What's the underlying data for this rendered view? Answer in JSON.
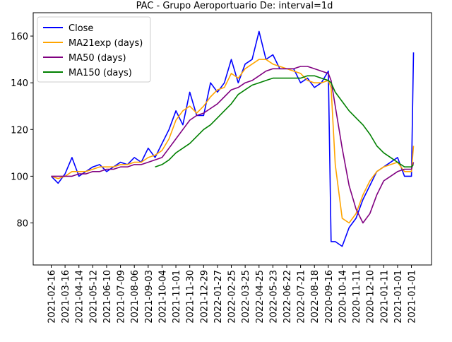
{
  "chart_data": {
    "type": "line",
    "title": "PAC - Grupo Aeroportuario De: interval=1d",
    "x": [
      0,
      10,
      20,
      30,
      40,
      50,
      60,
      70,
      80,
      90,
      100,
      110,
      120,
      130,
      140,
      150,
      160,
      170,
      180,
      190,
      200,
      210,
      220,
      230,
      240,
      250,
      260,
      270,
      280,
      290,
      300,
      310,
      320,
      330,
      340,
      350,
      360,
      370,
      380,
      390,
      400,
      404,
      410,
      420,
      430,
      440,
      450,
      460,
      470,
      480,
      490,
      500,
      510,
      520,
      523
    ],
    "series": [
      {
        "name": "Close",
        "color": "#0000ff",
        "values": [
          100,
          97,
          101,
          108,
          100,
          102,
          104,
          105,
          102,
          104,
          106,
          105,
          108,
          106,
          112,
          108,
          114,
          120,
          128,
          122,
          136,
          126,
          126,
          140,
          136,
          140,
          150,
          140,
          148,
          150,
          162,
          150,
          152,
          146,
          146,
          146,
          140,
          142,
          138,
          140,
          145,
          72,
          72,
          70,
          78,
          82,
          90,
          96,
          102,
          104,
          106,
          108,
          100,
          100,
          153
        ]
      },
      {
        "name": "MA21exp (days)",
        "color": "#ffa500",
        "values": [
          100,
          99,
          100,
          102,
          102,
          102,
          103,
          104,
          104,
          104,
          105,
          105,
          106,
          106,
          108,
          109,
          111,
          116,
          124,
          128,
          130,
          127,
          130,
          134,
          137,
          138,
          144,
          142,
          146,
          148,
          150,
          150,
          148,
          147,
          146,
          145,
          144,
          141,
          140,
          140,
          141,
          138,
          105,
          82,
          80,
          84,
          92,
          98,
          102,
          104,
          105,
          106,
          102,
          102,
          113
        ]
      },
      {
        "name": "MA50 (days)",
        "color": "#800080",
        "values": [
          100,
          100,
          100,
          100,
          101,
          101,
          102,
          102,
          103,
          103,
          104,
          104,
          105,
          105,
          106,
          107,
          108,
          112,
          116,
          120,
          124,
          126,
          127,
          129,
          131,
          134,
          137,
          138,
          140,
          141,
          143,
          145,
          146,
          146,
          146,
          146,
          147,
          147,
          146,
          145,
          144,
          141,
          130,
          112,
          96,
          86,
          80,
          84,
          92,
          98,
          100,
          102,
          103,
          103,
          106
        ]
      },
      {
        "name": "MA150 (days)",
        "color": "#008000",
        "values": [
          null,
          null,
          null,
          null,
          null,
          null,
          null,
          null,
          null,
          null,
          null,
          null,
          null,
          null,
          null,
          104,
          105,
          107,
          110,
          112,
          114,
          117,
          120,
          122,
          125,
          128,
          131,
          135,
          137,
          139,
          140,
          141,
          142,
          142,
          142,
          142,
          142,
          143,
          143,
          142,
          141,
          140,
          136,
          132,
          128,
          125,
          122,
          118,
          113,
          110,
          108,
          106,
          104,
          104,
          105
        ]
      }
    ],
    "xlim": [
      -26,
      549
    ],
    "xticks": [
      {
        "value": 0,
        "label": "2021-02-16"
      },
      {
        "value": 20,
        "label": "2021-03-16"
      },
      {
        "value": 40,
        "label": "2021-04-14"
      },
      {
        "value": 60,
        "label": "2021-05-12"
      },
      {
        "value": 80,
        "label": "2021-06-10"
      },
      {
        "value": 100,
        "label": "2021-07-09"
      },
      {
        "value": 120,
        "label": "2021-08-06"
      },
      {
        "value": 140,
        "label": "2021-09-03"
      },
      {
        "value": 160,
        "label": "2021-10-04"
      },
      {
        "value": 180,
        "label": "2021-11-01"
      },
      {
        "value": 200,
        "label": "2021-11-30"
      },
      {
        "value": 220,
        "label": "2021-12-29"
      },
      {
        "value": 240,
        "label": "2022-01-27"
      },
      {
        "value": 260,
        "label": "2022-02-25"
      },
      {
        "value": 280,
        "label": "2022-03-25"
      },
      {
        "value": 300,
        "label": "2022-04-25"
      },
      {
        "value": 320,
        "label": "2022-05-23"
      },
      {
        "value": 340,
        "label": "2022-06-22"
      },
      {
        "value": 360,
        "label": "2022-07-21"
      },
      {
        "value": 380,
        "label": "2022-08-18"
      },
      {
        "value": 400,
        "label": "2020-09-16"
      },
      {
        "value": 420,
        "label": "2020-10-14"
      },
      {
        "value": 440,
        "label": "2020-11-11"
      },
      {
        "value": 460,
        "label": "2020-12-10"
      },
      {
        "value": 480,
        "label": "2021-01-11"
      },
      {
        "value": 500,
        "label": "2021-01-01"
      },
      {
        "value": 520,
        "label": "2021-01-01"
      }
    ],
    "ylim": [
      62,
      170
    ],
    "yticks": [
      80,
      100,
      120,
      140,
      160
    ],
    "legend": "upper left"
  }
}
